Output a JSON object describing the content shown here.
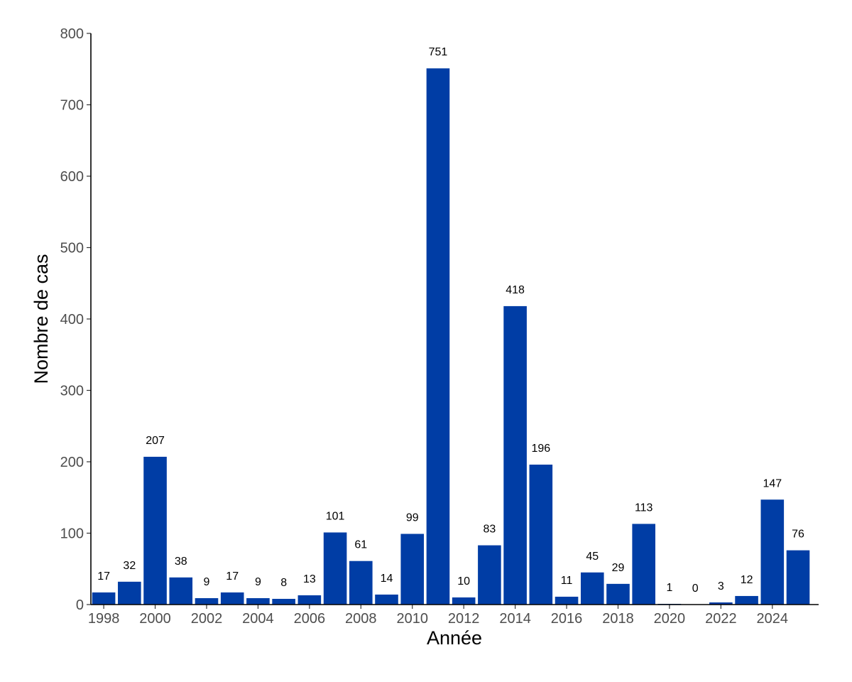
{
  "chart_data": {
    "type": "bar",
    "xlabel": "Année",
    "ylabel": "Nombre de cas",
    "x": [
      1998,
      1999,
      2000,
      2001,
      2002,
      2003,
      2004,
      2005,
      2006,
      2007,
      2008,
      2009,
      2010,
      2011,
      2012,
      2013,
      2014,
      2015,
      2016,
      2017,
      2018,
      2019,
      2020,
      2021,
      2022,
      2023,
      2024,
      2025
    ],
    "values": [
      17,
      32,
      207,
      38,
      9,
      17,
      9,
      8,
      13,
      101,
      61,
      14,
      99,
      751,
      10,
      83,
      418,
      196,
      11,
      45,
      29,
      113,
      1,
      0,
      3,
      12,
      147,
      76
    ],
    "x_ticks": [
      "1998",
      "2000",
      "2002",
      "2004",
      "2006",
      "2008",
      "2010",
      "2012",
      "2014",
      "2016",
      "2018",
      "2020",
      "2022",
      "2024"
    ],
    "y_ticks": [
      "0",
      "100",
      "200",
      "300",
      "400",
      "500",
      "600",
      "700",
      "800"
    ],
    "ylim": [
      0,
      800
    ],
    "grid": false,
    "legend": false,
    "bar_color": "#003da5",
    "data_labels": true
  }
}
